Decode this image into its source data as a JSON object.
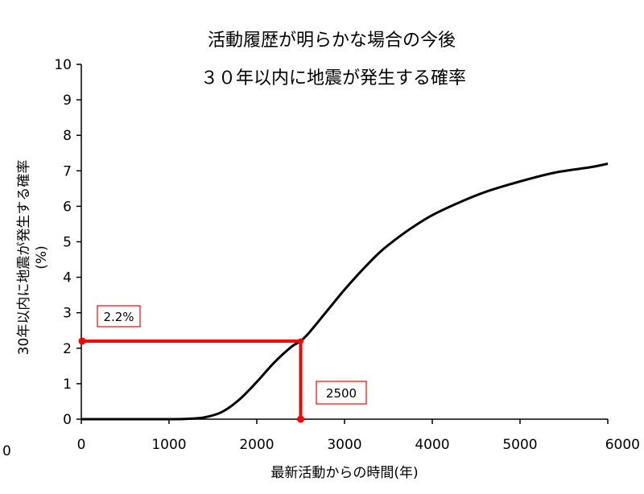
{
  "chart_data": {
    "type": "line",
    "title_line1": "活動履歴が明らかな場合の今後",
    "title_line2": "３０年以内に地震が発生する確率",
    "xlabel": "最新活動からの時間(年)",
    "ylabel_line1": "30年以内に地震が発生する確率",
    "ylabel_line2": "(%)",
    "xlim": [
      0,
      6000
    ],
    "ylim": [
      0,
      10
    ],
    "x_ticks": [
      0,
      1000,
      2000,
      3000,
      4000,
      5000,
      6000
    ],
    "x_tick_labels": [
      "0",
      "1000",
      "2000",
      "3000",
      "4000",
      "5000",
      "6000"
    ],
    "y_ticks": [
      0,
      1,
      2,
      3,
      4,
      5,
      6,
      7,
      8,
      9,
      10
    ],
    "y_tick_labels": [
      "0",
      "1",
      "2",
      "3",
      "4",
      "5",
      "6",
      "7",
      "8",
      "9",
      "10"
    ],
    "grid": false,
    "series": [
      {
        "color": "#000000",
        "x": [
          0,
          1000,
          1200,
          1400,
          1600,
          1800,
          2000,
          2200,
          2400,
          2500,
          2600,
          2800,
          3000,
          3200,
          3400,
          3600,
          3800,
          4000,
          4300,
          4600,
          5000,
          5400,
          5800,
          6000
        ],
        "y": [
          0,
          0,
          0.01,
          0.05,
          0.2,
          0.55,
          1.05,
          1.6,
          2.05,
          2.2,
          2.45,
          3.05,
          3.65,
          4.2,
          4.7,
          5.1,
          5.45,
          5.75,
          6.1,
          6.4,
          6.7,
          6.95,
          7.1,
          7.2
        ]
      }
    ],
    "annotations": [
      {
        "text": "2.2%",
        "x": 0,
        "y": 2.2,
        "label_position": "above-left"
      },
      {
        "text": "2500",
        "x": 2500,
        "y": 0,
        "label_position": "right"
      }
    ],
    "annotation_color": "#ff0000",
    "page_corner_text": "0"
  }
}
